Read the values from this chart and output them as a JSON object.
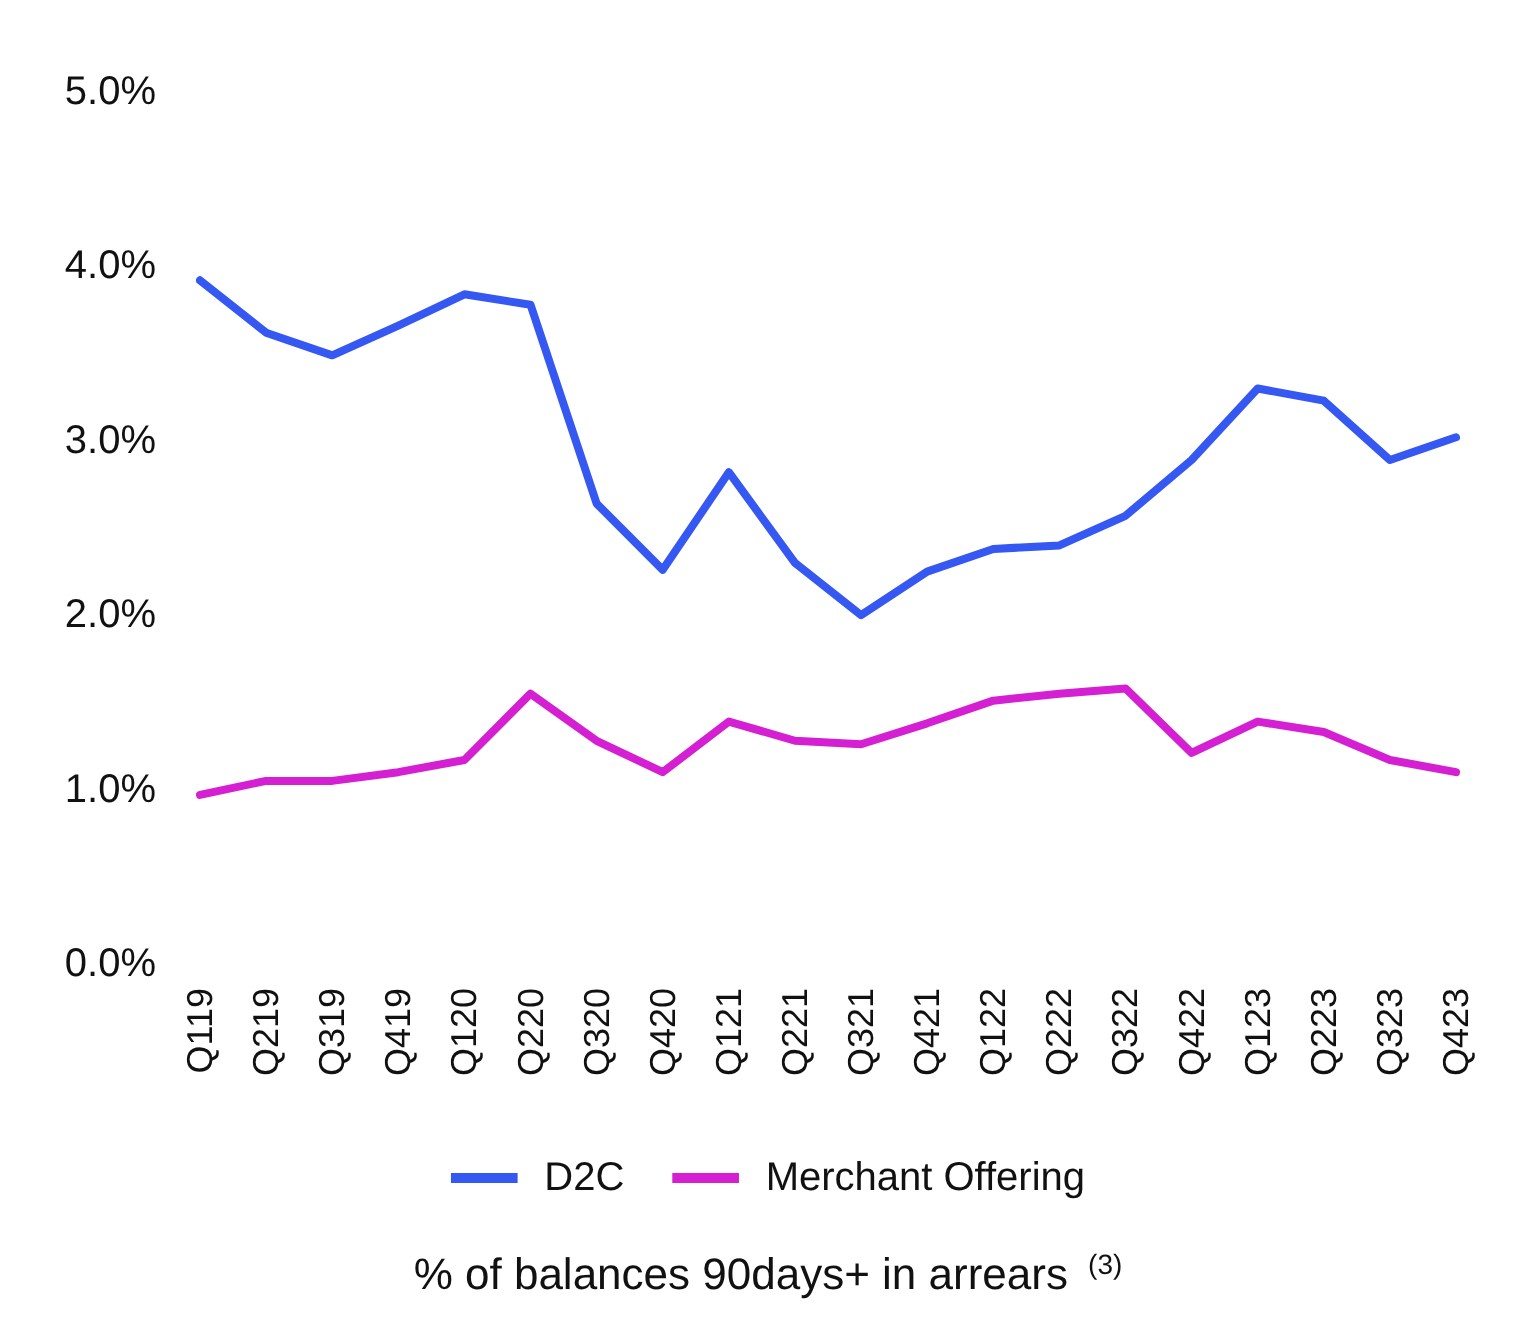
{
  "chart_data": {
    "type": "line",
    "xlabel": "% of balances 90days+ in arrears $^{(3)}$",
    "categories": [
      "Q119",
      "Q219",
      "Q319",
      "Q419",
      "Q120",
      "Q220",
      "Q320",
      "Q420",
      "Q121",
      "Q221",
      "Q321",
      "Q421",
      "Q122",
      "Q222",
      "Q322",
      "Q422",
      "Q123",
      "Q223",
      "Q323",
      "Q423"
    ],
    "series": [
      {
        "name": "D2C",
        "color": "#3557f2",
        "values": [
          3.92,
          3.62,
          3.49,
          3.66,
          3.84,
          3.78,
          2.64,
          2.26,
          2.82,
          2.3,
          2.0,
          2.25,
          2.38,
          2.4,
          2.57,
          2.89,
          3.3,
          3.23,
          2.89,
          3.02
        ]
      },
      {
        "name": "Merchant Offering",
        "color": "#d41fd2",
        "values": [
          0.97,
          1.05,
          1.05,
          1.1,
          1.17,
          1.55,
          1.28,
          1.1,
          1.39,
          1.28,
          1.26,
          1.38,
          1.51,
          1.55,
          1.58,
          1.21,
          1.39,
          1.33,
          1.17,
          1.1
        ]
      }
    ],
    "ylim": [
      0,
      5
    ],
    "yticks": [
      {
        "value": 0,
        "label": "0.0%"
      },
      {
        "value": 1,
        "label": "1.0%"
      },
      {
        "value": 2,
        "label": "2.0%"
      },
      {
        "value": 3,
        "label": "3.0%"
      },
      {
        "value": 4,
        "label": "4.0%"
      },
      {
        "value": 5,
        "label": "5.0%"
      }
    ],
    "grid": false,
    "legend": "bottom",
    "marker": "none",
    "line_style": "solid"
  }
}
